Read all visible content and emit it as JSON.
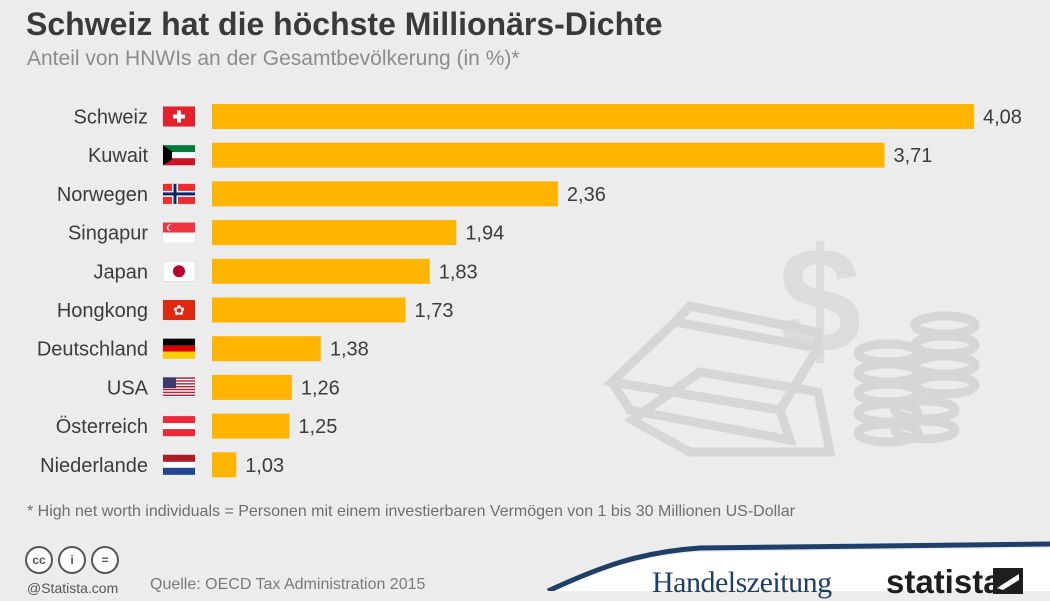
{
  "title": "Schweiz hat die höchste Millionärs-Dichte",
  "subtitle": "Anteil von HNWIs an der Gesamtbevölkerung (in %)*",
  "footnote": "* High net worth individuals = Personen mit einem investierbaren Vermögen von 1 bis 30 Millionen US-Dollar",
  "source": "Quelle: OECD Tax Administration 2015",
  "statista_url": "@Statista.com",
  "logos": {
    "handelszeitung": "Handelszeitung",
    "statista": "statista"
  },
  "colors": {
    "bar": "#ffb400",
    "background": "#ececec"
  },
  "chart_data": {
    "type": "bar",
    "orientation": "horizontal",
    "categories": [
      "Schweiz",
      "Kuwait",
      "Norwegen",
      "Singapur",
      "Japan",
      "Hongkong",
      "Deutschland",
      "USA",
      "Österreich",
      "Niederlande"
    ],
    "values": [
      4.08,
      3.71,
      2.36,
      1.94,
      1.83,
      1.73,
      1.38,
      1.26,
      1.25,
      1.03
    ],
    "value_labels": [
      "4,08",
      "3,71",
      "2,36",
      "1,94",
      "1,83",
      "1,73",
      "1,38",
      "1,26",
      "1,25",
      "1,03"
    ],
    "flags": [
      "switzerland-flag",
      "kuwait-flag",
      "norway-flag",
      "singapore-flag",
      "japan-flag",
      "hongkong-flag",
      "germany-flag",
      "usa-flag",
      "austria-flag",
      "netherlands-flag"
    ],
    "xlim": [
      0.93,
      4.08
    ],
    "grid": false,
    "legend": "none"
  }
}
